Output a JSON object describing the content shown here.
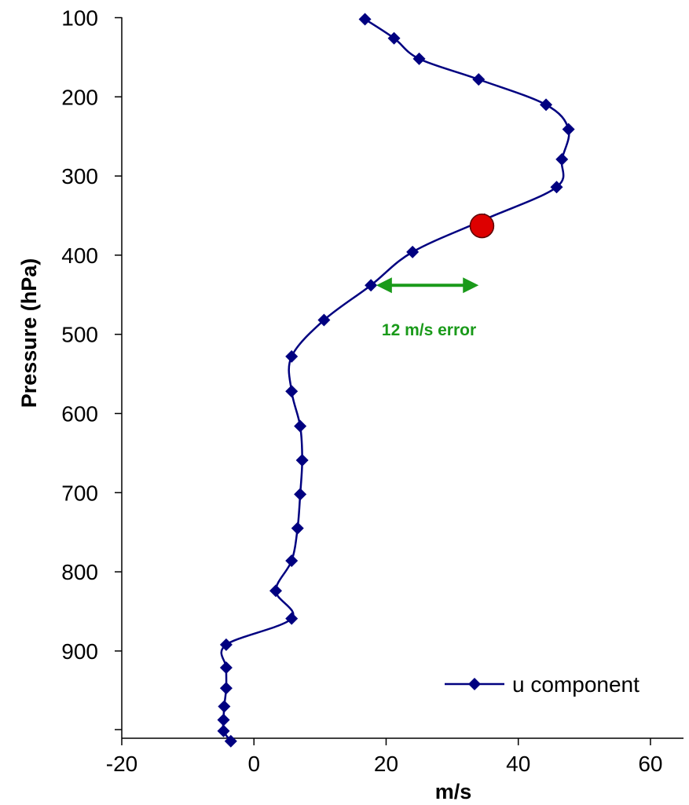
{
  "chart_data": {
    "type": "line",
    "title": "",
    "xlabel": "m/s",
    "ylabel": "Pressure (hPa)",
    "xlim": [
      -20,
      65
    ],
    "ylim": [
      1010,
      100
    ],
    "y_inverted": true,
    "xticks": [
      -20,
      0,
      20,
      40,
      60
    ],
    "yticks": [
      100,
      200,
      300,
      400,
      500,
      600,
      700,
      800,
      900
    ],
    "grid": false,
    "legend_position": "bottom-right",
    "series": [
      {
        "name": "u component",
        "color": "#000080",
        "marker": "diamond",
        "points": [
          {
            "x": 16.8,
            "p": 102
          },
          {
            "x": 21.2,
            "p": 126
          },
          {
            "x": 25.0,
            "p": 152
          },
          {
            "x": 34.0,
            "p": 178
          },
          {
            "x": 44.2,
            "p": 210
          },
          {
            "x": 47.6,
            "p": 241
          },
          {
            "x": 46.6,
            "p": 279
          },
          {
            "x": 45.8,
            "p": 314
          },
          {
            "x": 34.9,
            "p": 355
          },
          {
            "x": 24.0,
            "p": 396
          },
          {
            "x": 17.7,
            "p": 438
          },
          {
            "x": 10.6,
            "p": 482
          },
          {
            "x": 5.7,
            "p": 528
          },
          {
            "x": 5.7,
            "p": 572
          },
          {
            "x": 7.0,
            "p": 616
          },
          {
            "x": 7.3,
            "p": 659
          },
          {
            "x": 7.0,
            "p": 702
          },
          {
            "x": 6.6,
            "p": 745
          },
          {
            "x": 5.7,
            "p": 786
          },
          {
            "x": 3.3,
            "p": 824
          },
          {
            "x": 5.7,
            "p": 859
          },
          {
            "x": -4.2,
            "p": 892
          },
          {
            "x": -4.2,
            "p": 921
          },
          {
            "x": -4.2,
            "p": 947
          },
          {
            "x": -4.5,
            "p": 970
          },
          {
            "x": -4.6,
            "p": 987
          },
          {
            "x": -4.6,
            "p": 1001
          },
          {
            "x": -3.5,
            "p": 1014
          }
        ]
      }
    ],
    "highlight_point": {
      "x": 34.5,
      "p": 363,
      "color": "#dd0000"
    },
    "annotation": {
      "text": "12 m/s error",
      "x_from": 18.5,
      "x_to": 34.0,
      "p": 438,
      "color": "#1a9a1a"
    }
  }
}
